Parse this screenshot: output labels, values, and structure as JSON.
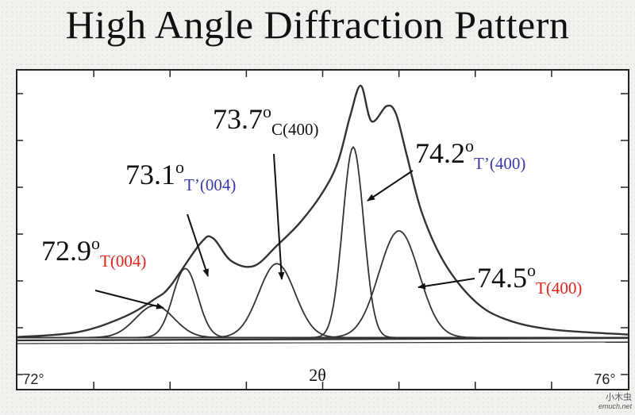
{
  "title": "High Angle Diffraction Pattern",
  "watermark": {
    "line1": "小木虫",
    "line2": "emuch.net"
  },
  "chart_data": {
    "type": "line",
    "title": "High Angle Diffraction Pattern",
    "xlabel": "2θ",
    "ylabel": "",
    "xlim": [
      72,
      76
    ],
    "x_tick_labels": [
      {
        "value": 72,
        "label": "72°"
      },
      {
        "value": 76,
        "label": "76°"
      }
    ],
    "grid": false,
    "line_color": "#333333",
    "label_colors": {
      "number": "#111111",
      "red": "#e0231c",
      "blue": "#3a3aa8"
    },
    "component_peaks": [
      {
        "center": 72.9,
        "intensity": 0.126,
        "width": 0.2,
        "number": "72.9",
        "degree": "o",
        "subscript": "T(004)",
        "color_key": "red"
      },
      {
        "center": 73.1,
        "intensity": 0.272,
        "width": 0.13,
        "number": "73.1",
        "degree": "o",
        "subscript": "T’(004)",
        "color_key": "blue"
      },
      {
        "center": 73.7,
        "intensity": 0.291,
        "width": 0.19,
        "number": "73.7",
        "degree": "o",
        "subscript": "C(400)",
        "color_key": "black"
      },
      {
        "center": 74.2,
        "intensity": 0.75,
        "width": 0.11,
        "number": "74.2",
        "degree": "o",
        "subscript": "T’(400)",
        "color_key": "blue"
      },
      {
        "center": 74.5,
        "intensity": 0.42,
        "width": 0.21,
        "number": "74.5",
        "degree": "o",
        "subscript": "T(400)",
        "color_key": "red"
      }
    ],
    "envelope": {
      "x": [
        72.0,
        72.4,
        72.7,
        72.9,
        73.0,
        73.2,
        73.28,
        73.4,
        73.55,
        73.7,
        73.85,
        74.0,
        74.1,
        74.18,
        74.25,
        74.32,
        74.42,
        74.48,
        74.55,
        74.65,
        74.8,
        75.0,
        75.2,
        75.5,
        76.0
      ],
      "y": [
        0.01,
        0.03,
        0.09,
        0.16,
        0.21,
        0.38,
        0.4,
        0.31,
        0.29,
        0.37,
        0.46,
        0.58,
        0.7,
        0.88,
        1.0,
        0.86,
        0.92,
        0.89,
        0.73,
        0.5,
        0.3,
        0.15,
        0.08,
        0.04,
        0.02
      ]
    }
  }
}
